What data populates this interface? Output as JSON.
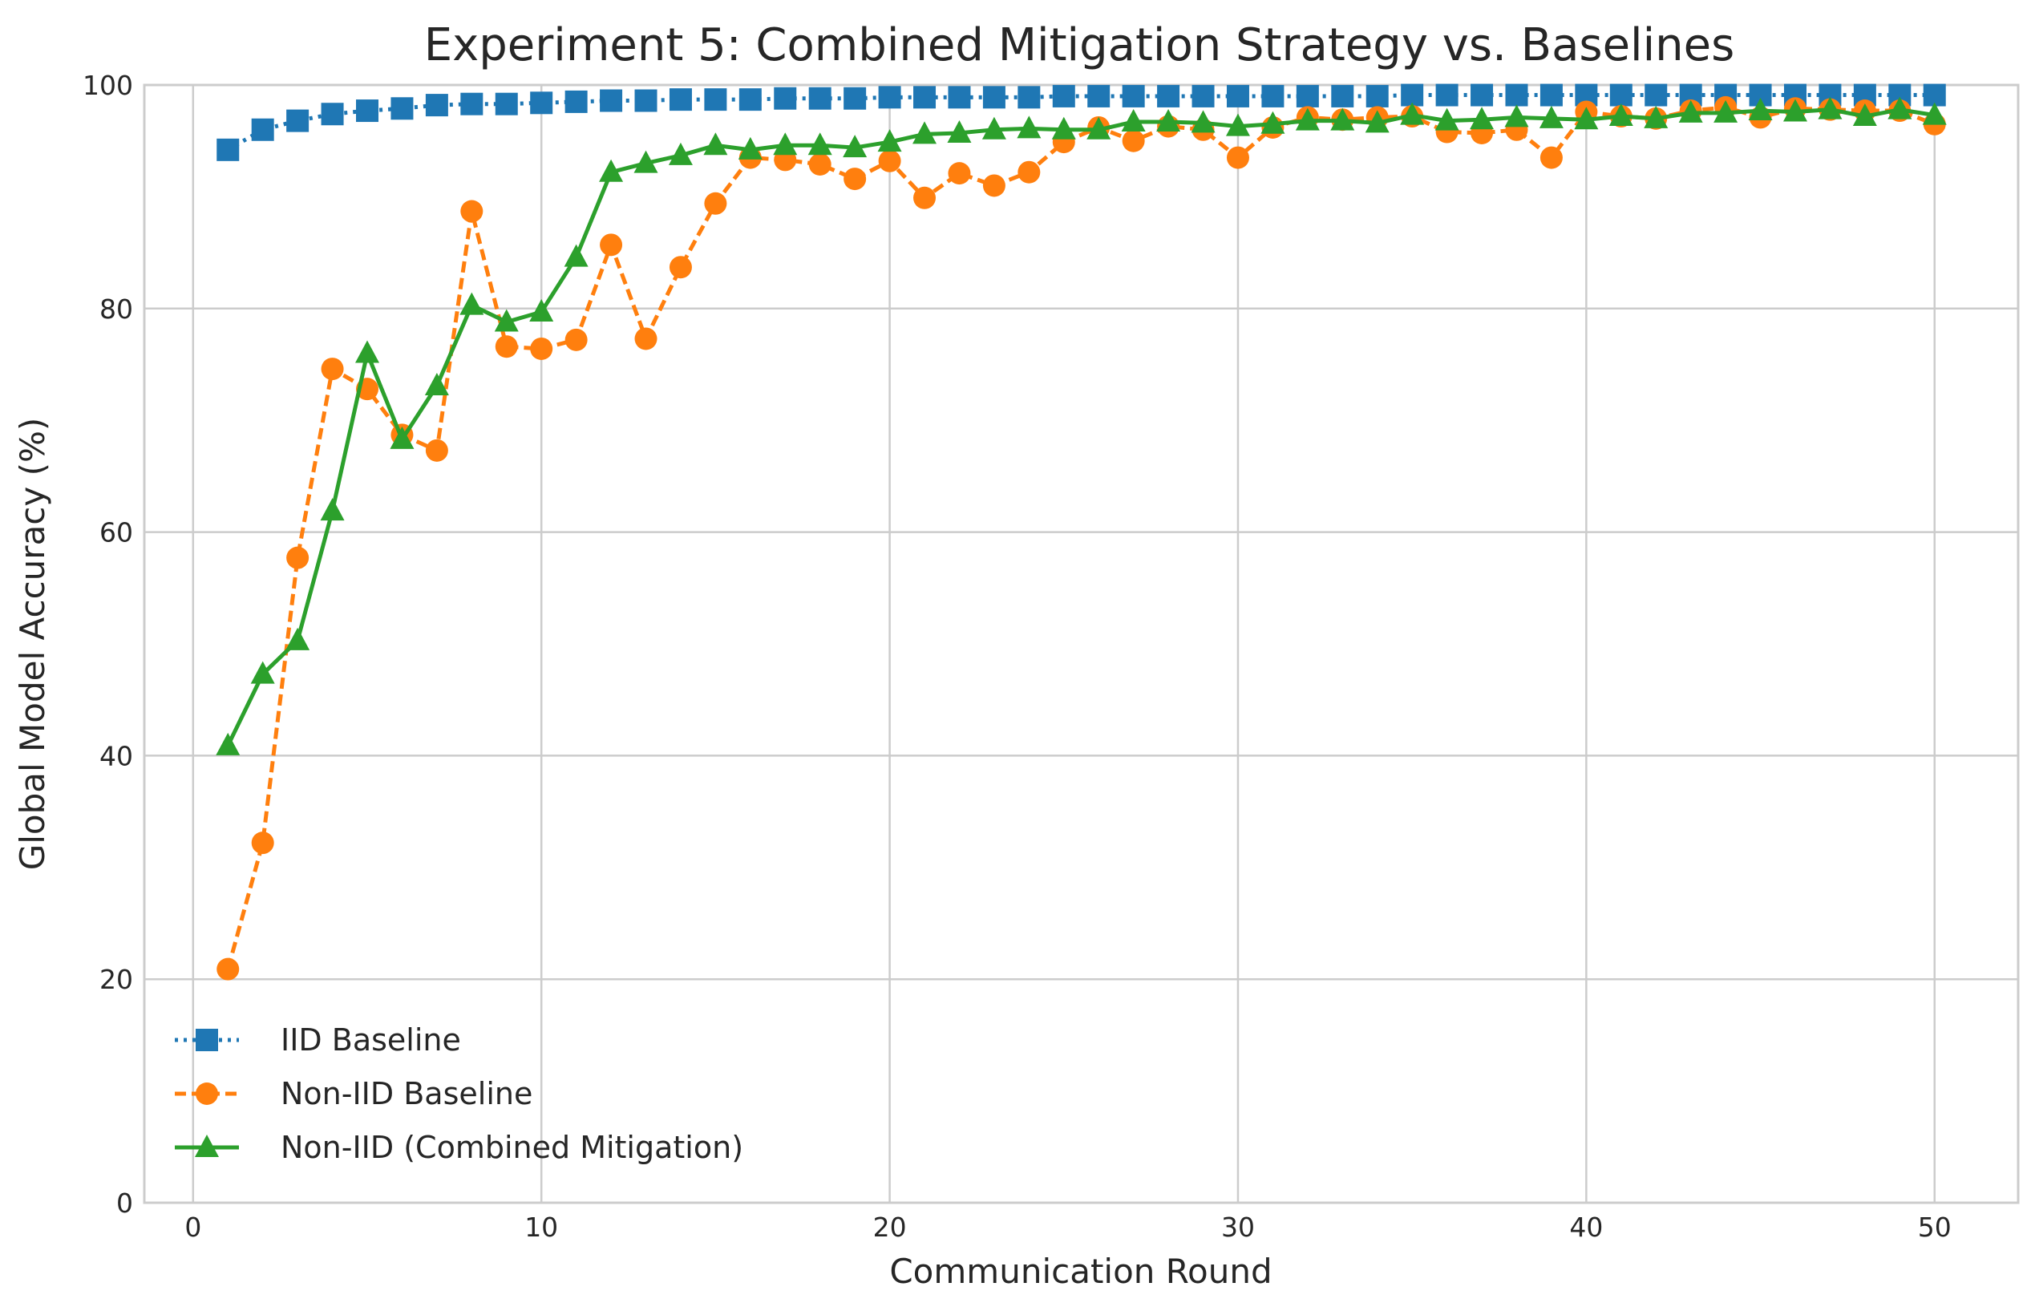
{
  "chart_data": {
    "type": "line",
    "title": "Experiment 5: Combined Mitigation Strategy vs. Baselines",
    "xlabel": "Communication Round",
    "ylabel": "Global Model Accuracy (%)",
    "xlim": [
      -1.4,
      52.4
    ],
    "ylim": [
      0,
      100
    ],
    "xticks": [
      0,
      10,
      20,
      30,
      40,
      50
    ],
    "yticks": [
      0,
      20,
      40,
      60,
      80,
      100
    ],
    "grid": true,
    "legend_position": "lower-left",
    "x": [
      1,
      2,
      3,
      4,
      5,
      6,
      7,
      8,
      9,
      10,
      11,
      12,
      13,
      14,
      15,
      16,
      17,
      18,
      19,
      20,
      21,
      22,
      23,
      24,
      25,
      26,
      27,
      28,
      29,
      30,
      31,
      32,
      33,
      34,
      35,
      36,
      37,
      38,
      39,
      40,
      41,
      42,
      43,
      44,
      45,
      46,
      47,
      48,
      49,
      50
    ],
    "series": [
      {
        "name": "IID Baseline",
        "color": "#1f77b4",
        "line_style": "dotted",
        "marker": "square",
        "values": [
          94.2,
          96.0,
          96.8,
          97.4,
          97.7,
          97.9,
          98.2,
          98.3,
          98.3,
          98.4,
          98.5,
          98.6,
          98.6,
          98.7,
          98.7,
          98.7,
          98.8,
          98.8,
          98.8,
          98.9,
          98.9,
          98.9,
          98.9,
          98.9,
          99.0,
          99.0,
          99.0,
          99.0,
          99.0,
          99.0,
          99.0,
          99.0,
          99.0,
          99.0,
          99.1,
          99.1,
          99.1,
          99.1,
          99.1,
          99.1,
          99.1,
          99.1,
          99.1,
          99.1,
          99.1,
          99.1,
          99.1,
          99.1,
          99.1,
          99.1
        ]
      },
      {
        "name": "Non-IID Baseline",
        "color": "#ff7f0e",
        "line_style": "dashed",
        "marker": "circle",
        "values": [
          20.9,
          32.2,
          57.7,
          74.6,
          72.8,
          68.7,
          67.3,
          88.7,
          76.6,
          76.4,
          77.2,
          85.7,
          77.3,
          83.7,
          89.4,
          93.5,
          93.3,
          92.9,
          91.6,
          93.2,
          89.9,
          92.1,
          91.0,
          92.2,
          94.9,
          96.2,
          95.0,
          96.3,
          96.0,
          93.5,
          96.2,
          97.1,
          96.9,
          97.1,
          97.2,
          95.8,
          95.7,
          96.0,
          93.5,
          97.6,
          97.2,
          97.0,
          97.7,
          98.0,
          97.1,
          97.9,
          97.8,
          97.7,
          97.7,
          96.5
        ]
      },
      {
        "name": "Non-IID (Combined Mitigation)",
        "color": "#2ca02c",
        "line_style": "solid",
        "marker": "triangle",
        "values": [
          40.9,
          47.3,
          50.3,
          61.9,
          76.0,
          68.3,
          73.1,
          80.3,
          78.8,
          79.7,
          84.6,
          92.2,
          93.0,
          93.7,
          94.6,
          94.2,
          94.6,
          94.6,
          94.4,
          94.9,
          95.6,
          95.7,
          96.0,
          96.1,
          96.0,
          96.0,
          96.7,
          96.7,
          96.6,
          96.3,
          96.5,
          96.8,
          96.8,
          96.6,
          97.3,
          96.8,
          96.9,
          97.1,
          97.0,
          96.9,
          97.2,
          97.0,
          97.5,
          97.5,
          97.7,
          97.6,
          97.8,
          97.2,
          97.8,
          97.3
        ]
      }
    ]
  }
}
